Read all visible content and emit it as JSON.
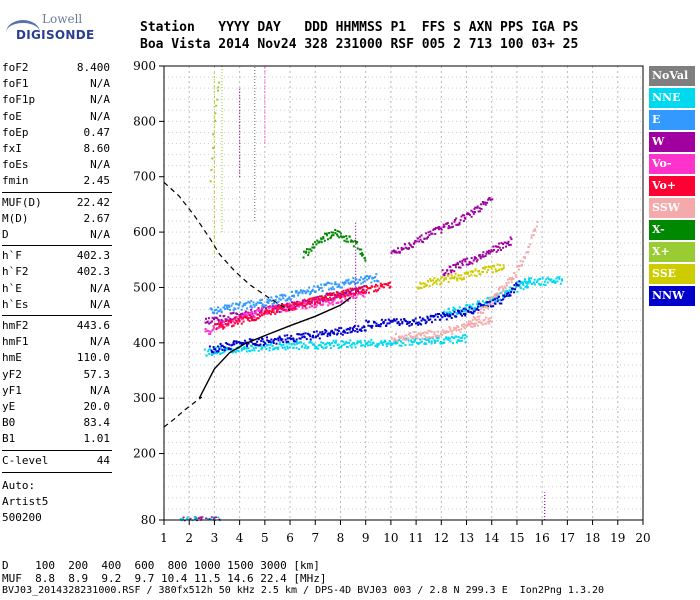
{
  "logo": {
    "line1": "Lowell",
    "line2": "DIGISONDE"
  },
  "header": {
    "line1": "Station   YYYY DAY   DDD HHMMSS P1  FFS S AXN PPS IGA PS",
    "line2": "Boa Vista 2014 Nov24 328 231000 RSF 005 2 713 100 03+ 25"
  },
  "params": [
    {
      "k": "foF2",
      "v": "8.400"
    },
    {
      "k": "foF1",
      "v": "N/A"
    },
    {
      "k": "foF1p",
      "v": "N/A"
    },
    {
      "k": "foE",
      "v": "N/A"
    },
    {
      "k": "foEp",
      "v": "0.47"
    },
    {
      "k": "fxI",
      "v": "8.60"
    },
    {
      "k": "foEs",
      "v": "N/A"
    },
    {
      "k": "fmin",
      "v": "2.45"
    },
    {
      "k": "MUF(D)",
      "v": "22.42"
    },
    {
      "k": "M(D)",
      "v": "2.67"
    },
    {
      "k": "D",
      "v": "N/A"
    },
    {
      "k": "h`F",
      "v": "402.3"
    },
    {
      "k": "h`F2",
      "v": "402.3"
    },
    {
      "k": "h`E",
      "v": "N/A"
    },
    {
      "k": "h`Es",
      "v": "N/A"
    },
    {
      "k": "hmF2",
      "v": "443.6"
    },
    {
      "k": "hmF1",
      "v": "N/A"
    },
    {
      "k": "hmE",
      "v": "110.0"
    },
    {
      "k": "yF2",
      "v": "57.3"
    },
    {
      "k": "yF1",
      "v": "N/A"
    },
    {
      "k": "yE",
      "v": "20.0"
    },
    {
      "k": "B0",
      "v": "83.4"
    },
    {
      "k": "B1",
      "v": "1.01"
    },
    {
      "k": "C-level",
      "v": "44"
    }
  ],
  "notes": {
    "auto": "Auto:",
    "artist": "Artist5",
    "code": "500200"
  },
  "legend": [
    {
      "label": "NoVal",
      "color": "#7f7f7f"
    },
    {
      "label": "NNE",
      "color": "#00d8f0"
    },
    {
      "label": "E",
      "color": "#3399ff"
    },
    {
      "label": "W",
      "color": "#a000a0"
    },
    {
      "label": "Vo-",
      "color": "#ff33cc"
    },
    {
      "label": "Vo+",
      "color": "#ff0033"
    },
    {
      "label": "SSW",
      "color": "#f4aaaa"
    },
    {
      "label": "X-",
      "color": "#008800"
    },
    {
      "label": "X+",
      "color": "#99cc33"
    },
    {
      "label": "SSE",
      "color": "#cccc00"
    },
    {
      "label": "NNW",
      "color": "#0000cc"
    }
  ],
  "bottom": {
    "d_row": "D    100  200  400  600  800 1000 1500 3000 [km]",
    "muf_row": "MUF  8.8  8.9  9.2  9.7 10.4 11.5 14.6 22.4 [MHz]",
    "footer": "BVJ03_2014328231000.RSF / 380fx512h 50 kHz 2.5 km / DPS-4D BVJ03 003 / 2.8 N 299.3 E  Ion2Png 1.3.20"
  },
  "chart_data": {
    "type": "scatter",
    "xlim": [
      1,
      20
    ],
    "ylim": [
      80,
      900
    ],
    "x_ticks": [
      "1",
      "2",
      "3",
      "4",
      "5",
      "6",
      "7",
      "8",
      "9",
      "10",
      "11",
      "12",
      "13",
      "14",
      "15",
      "16",
      "17",
      "18",
      "19",
      "20"
    ],
    "y_ticks": [
      "80",
      "200",
      "300",
      "400",
      "500",
      "600",
      "700",
      "800",
      "900"
    ],
    "grid": true,
    "legend_position": "right",
    "profile_curve": {
      "x": [
        2.4,
        3.0,
        3.6,
        4.2,
        5.0,
        6.0,
        7.0,
        8.0,
        8.4
      ],
      "y": [
        300,
        353,
        382,
        398,
        413,
        431,
        448,
        468,
        482
      ]
    },
    "dashed_curve_upper": {
      "x": [
        1.0,
        1.6,
        2.2,
        2.8,
        3.2,
        3.8,
        4.4,
        5.2,
        6.0
      ],
      "y": [
        690,
        665,
        630,
        590,
        560,
        530,
        505,
        480,
        458
      ]
    },
    "dashed_curve_lower": {
      "x": [
        1.0,
        1.4,
        1.8,
        2.2,
        2.5
      ],
      "y": [
        248,
        262,
        278,
        292,
        302
      ]
    },
    "traces": [
      {
        "color_ref": "NNE",
        "x": [
          2.6,
          4.0,
          6.0,
          8.0,
          10.0,
          12.0,
          13.0
        ],
        "y": [
          385,
          392,
          397,
          399,
          402,
          405,
          410
        ]
      },
      {
        "color_ref": "NNE",
        "x": [
          12.0,
          13.0,
          14.0,
          14.8,
          15.5
        ],
        "y": [
          455,
          465,
          480,
          498,
          510
        ]
      },
      {
        "color_ref": "NNE",
        "x": [
          15.0,
          15.6,
          16.2,
          16.8
        ],
        "y": [
          512,
          512,
          513,
          514
        ]
      },
      {
        "color_ref": "W",
        "x": [
          10.0,
          11.0,
          12.0,
          13.0,
          14.0
        ],
        "y": [
          565,
          585,
          608,
          630,
          662
        ]
      },
      {
        "color_ref": "W",
        "x": [
          12.0,
          13.0,
          14.0,
          14.8
        ],
        "y": [
          528,
          548,
          568,
          588
        ]
      },
      {
        "color_ref": "W",
        "x": [
          2.6,
          4.0,
          6.0,
          8.0,
          9.0
        ],
        "y": [
          440,
          452,
          468,
          490,
          500
        ]
      },
      {
        "color_ref": "NNW",
        "x": [
          9.0,
          11.0,
          13.0,
          14.5,
          15.1
        ],
        "y": [
          435,
          440,
          458,
          482,
          512
        ]
      },
      {
        "color_ref": "NNW",
        "x": [
          2.8,
          4.0,
          6.0,
          8.0,
          9.0
        ],
        "y": [
          390,
          400,
          410,
          422,
          430
        ]
      },
      {
        "color_ref": "Vo-",
        "x": [
          2.6,
          3.5,
          5.0,
          6.5,
          8.0,
          9.0
        ],
        "y": [
          420,
          440,
          460,
          470,
          480,
          490
        ]
      },
      {
        "color_ref": "Vo+",
        "x": [
          3.0,
          5.0,
          7.0,
          8.5,
          10.0
        ],
        "y": [
          430,
          455,
          478,
          495,
          505
        ]
      },
      {
        "color_ref": "E",
        "x": [
          2.8,
          4.0,
          5.5,
          7.0,
          8.5,
          9.5
        ],
        "y": [
          460,
          468,
          480,
          500,
          512,
          520
        ]
      },
      {
        "color_ref": "SSW",
        "x": [
          13.0,
          14.0,
          14.8,
          15.3,
          15.8
        ],
        "y": [
          430,
          480,
          520,
          560,
          620
        ]
      },
      {
        "color_ref": "SSW",
        "x": [
          10.0,
          12.0,
          14.0
        ],
        "y": [
          410,
          420,
          445
        ]
      },
      {
        "color_ref": "SSE",
        "x": [
          11.0,
          12.5,
          13.5,
          14.5
        ],
        "y": [
          505,
          520,
          530,
          540
        ]
      },
      {
        "color_ref": "X-",
        "x": [
          6.5,
          7.2,
          7.8,
          8.6,
          9.0
        ],
        "y": [
          560,
          590,
          600,
          580,
          545
        ]
      },
      {
        "color_ref": "X+",
        "x": [
          2.8,
          3.0,
          3.2
        ],
        "y": [
          700,
          820,
          890
        ]
      }
    ]
  }
}
